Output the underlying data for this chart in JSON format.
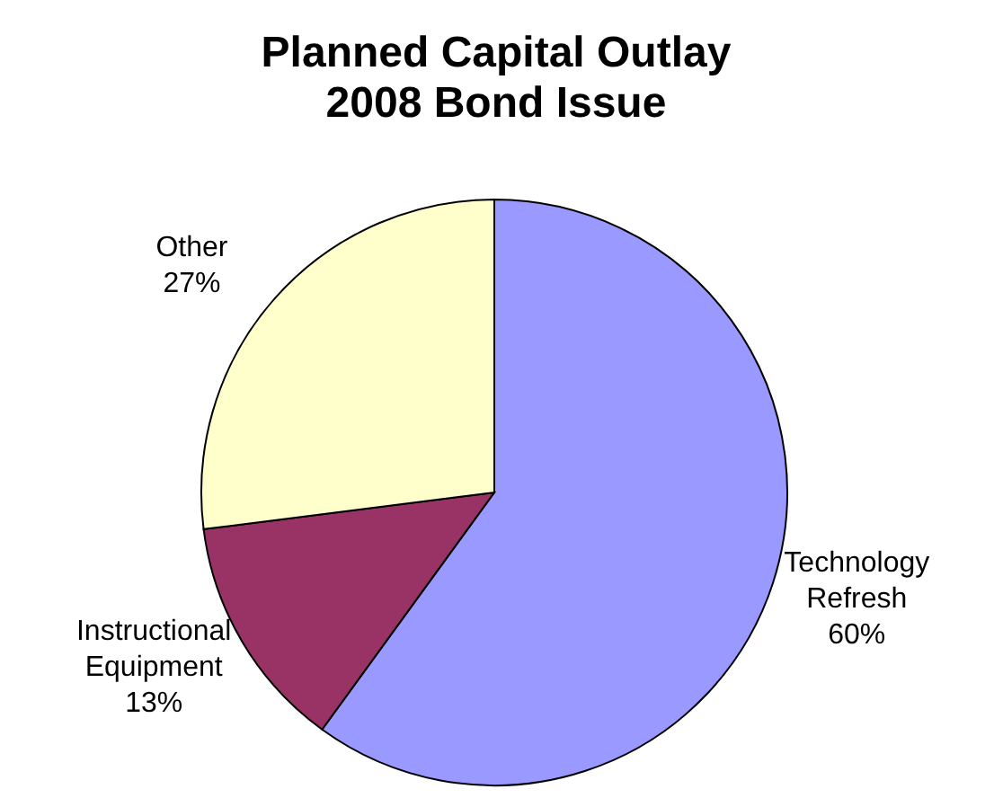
{
  "chart_data": {
    "type": "pie",
    "title": "Planned Capital Outlay\n2008 Bond Issue",
    "categories": [
      "Technology Refresh",
      "Instructional Equipment",
      "Other"
    ],
    "values": [
      60,
      13,
      27
    ],
    "value_labels": [
      "60%",
      "13%",
      "27%"
    ],
    "colors": [
      "#9999ff",
      "#993366",
      "#ffffcc"
    ],
    "legend": false
  }
}
